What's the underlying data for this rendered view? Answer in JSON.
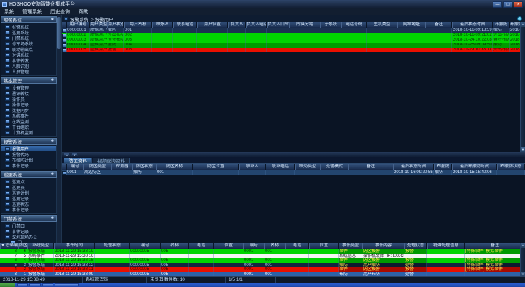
{
  "window": {
    "title": "HOSHOO安防智能化集成平台",
    "controls": [
      "minimize",
      "maximize",
      "close"
    ]
  },
  "menu": {
    "items": [
      "系统",
      "管理系统",
      "历史查询",
      "帮助"
    ]
  },
  "sidebar": {
    "groups": [
      {
        "label": "服务系统",
        "items": [
          {
            "label": "报警系统"
          },
          {
            "label": "巡更系统"
          },
          {
            "label": "门禁系统"
          },
          {
            "label": "停车场系统"
          },
          {
            "label": "联动输出点"
          },
          {
            "label": "对讲系统"
          },
          {
            "label": "事件转发"
          },
          {
            "label": "人脸识别"
          },
          {
            "label": "人员管理"
          }
        ]
      },
      {
        "label": "基本管理",
        "items": [
          {
            "label": "设备管理"
          },
          {
            "label": "通讯转接"
          },
          {
            "label": "操作员"
          },
          {
            "label": "操作记录"
          },
          {
            "label": "数据同步"
          },
          {
            "label": "系统事件"
          },
          {
            "label": "在线监测"
          },
          {
            "label": "平台组织"
          },
          {
            "label": "计算机监测"
          }
        ]
      },
      {
        "label": "报警系统",
        "items": [
          {
            "label": "报警用户",
            "selected": true
          },
          {
            "label": "报警代码"
          },
          {
            "label": "布撤防计划"
          },
          {
            "label": "事件记录"
          }
        ]
      },
      {
        "label": "巡更系统",
        "items": [
          {
            "label": "巡更点"
          },
          {
            "label": "巡更员"
          },
          {
            "label": "巡更计划"
          },
          {
            "label": "巡更记录"
          },
          {
            "label": "巡更状态"
          },
          {
            "label": "事件记录"
          }
        ]
      },
      {
        "label": "门禁系统",
        "items": [
          {
            "label": "门禁口"
          },
          {
            "label": "事件记录"
          },
          {
            "label": "深圳现场办公"
          },
          {
            "label": "门",
            "indent": true
          },
          {
            "label": "门禁集成服务器"
          }
        ]
      }
    ]
  },
  "breadcrumb": {
    "path": "报警系统 -> 报警用户"
  },
  "users_table": {
    "columns": [
      "用户编号",
      "用户类型",
      "用户状态",
      "用户名称",
      "联系人",
      "联系电话",
      "用户位置",
      "负责人",
      "负责人电话",
      "负责人口令",
      "所属分组",
      "子系统",
      "电话号码",
      "主机类型",
      "网络地址",
      "备注",
      "最后状态时间",
      "布撤防",
      "布撤防状态"
    ],
    "rows": [
      {
        "tone": "normal",
        "cells": [
          "00000001",
          "虚拟用户",
          "撤防",
          "001",
          "",
          "",
          "",
          "",
          "",
          "",
          "",
          "",
          "",
          "",
          "",
          "",
          "2018-10-16 09:18:59",
          "撤防",
          "2018-1"
        ]
      },
      {
        "tone": "green",
        "cells": [
          "00000002",
          "虚拟用户",
          "外出布防",
          "002",
          "",
          "",
          "",
          "",
          "",
          "",
          "",
          "",
          "",
          "",
          "",
          "",
          "2018-10-16 09:21:02",
          "外出布防",
          "2018-1"
        ]
      },
      {
        "tone": "green",
        "cells": [
          "00000003",
          "虚拟用户",
          "留守布防",
          "003",
          "",
          "",
          "",
          "",
          "",
          "",
          "",
          "",
          "",
          "",
          "",
          "",
          "2018-10-24 10:22:08",
          "留守布防",
          "2018-1"
        ]
      },
      {
        "tone": "darkgreen",
        "cells": [
          "00000004",
          "虚拟用户",
          "撤防",
          "004",
          "",
          "",
          "",
          "",
          "",
          "",
          "",
          "",
          "",
          "",
          "",
          "",
          "2018-10-25 09:09:50",
          "撤防",
          "2018-1"
        ]
      },
      {
        "tone": "red",
        "cells": [
          "00000005",
          "虚拟用户",
          "报警",
          "005",
          "",
          "",
          "",
          "",
          "",
          "",
          "",
          "",
          "",
          "",
          "",
          "",
          "2018-11-29 10:38:11",
          "外出布防",
          "2018-1"
        ]
      }
    ]
  },
  "zone_panel": {
    "tabs": [
      {
        "label": "防区资料",
        "active": true
      },
      {
        "label": "视频查询资料",
        "active": false
      }
    ],
    "columns": [
      "编号",
      "防区类型",
      "探测器",
      "防区状态",
      "防区名称",
      "防区位置",
      "联系人",
      "联系电话",
      "联动类型",
      "处警模式",
      "备注",
      "最后状态时间",
      "布撤防",
      "最后布撤防时间",
      "布撤防状态"
    ],
    "rows": [
      {
        "tone": "zonerow",
        "cells": [
          "0001",
          "周边防区",
          "",
          "撤防",
          "001",
          "",
          "",
          "",
          "",
          "",
          "",
          "2018-10-16 09:20:55",
          "撤防",
          "2018-10-15 15:40:06",
          ""
        ]
      }
    ]
  },
  "events_table": {
    "sort_indicator": "▼",
    "columns": [
      "记录编号",
      "防区",
      "系统类型",
      "事件时间",
      "处理状态",
      "编号",
      "名称",
      "电话",
      "位置",
      "编号",
      "名称",
      "电话",
      "位置",
      "事件类型",
      "事件内容",
      "处理状态",
      "特殊处理信息",
      "备注"
    ],
    "rows": [
      {
        "tone": "green",
        "cells": [
          "8",
          "6",
          "报警系统",
          "2018-11-29 15:38:19",
          "",
          "00000005",
          "005",
          "",
          "",
          "0001",
          "001",
          "",
          "",
          "事件",
          "防区报警",
          "报警",
          "",
          "[特殊事件] 模拟事件"
        ]
      },
      {
        "tone": "white",
        "cells": [
          "7",
          "5",
          "系统事件",
          "2018-11-29 15:38:16",
          "",
          "",
          "",
          "",
          "",
          "",
          "",
          "",
          "",
          "系统信息",
          "操作机故障 (IP: 8X6C)",
          "",
          "",
          ""
        ]
      },
      {
        "tone": "green",
        "cells": [
          "6",
          "4",
          "报警系统",
          "2018-11-29 15:38:15",
          "",
          "00000005",
          "005",
          "",
          "",
          "0001",
          "001",
          "",
          "",
          "事件",
          "防区报警",
          "报警",
          "",
          "[特殊事件] 模拟事件"
        ]
      },
      {
        "tone": "dark",
        "cells": [
          "5",
          "3",
          "报警系统",
          "2018-11-29 15:38:12",
          "",
          "00000005",
          "005",
          "",
          "",
          "0001",
          "001",
          "",
          "",
          "撤防",
          "用户撤防",
          "处警",
          "",
          "[特殊事件] 模拟事件"
        ]
      },
      {
        "tone": "red",
        "cells": [
          "4",
          "2",
          "报警系统",
          "2018-11-29 15:38:11",
          "",
          "00000005",
          "005",
          "",
          "",
          "0001",
          "001",
          "",
          "",
          "事件",
          "防区报警",
          "报警",
          "",
          "[特殊事件] 模拟事件"
        ]
      },
      {
        "tone": "selected",
        "cells": [
          "3",
          "1",
          "报警系统",
          "2018-11-29 15:38:09",
          "",
          "00000005",
          "005",
          "",
          "",
          "0001",
          "001",
          "",
          "",
          "布防",
          "用户布防",
          "处警",
          "",
          ""
        ]
      }
    ]
  },
  "status_bar": {
    "datetime": "2018-11-29 15:38:49",
    "operator": "系统管理员",
    "pending": "未处理事件数: 10",
    "pages": "1/5  1/1"
  },
  "colors": {
    "alarm_red": "#ea0f00",
    "armed_green": "#00d400",
    "selection_blue": "#2e61a8"
  }
}
